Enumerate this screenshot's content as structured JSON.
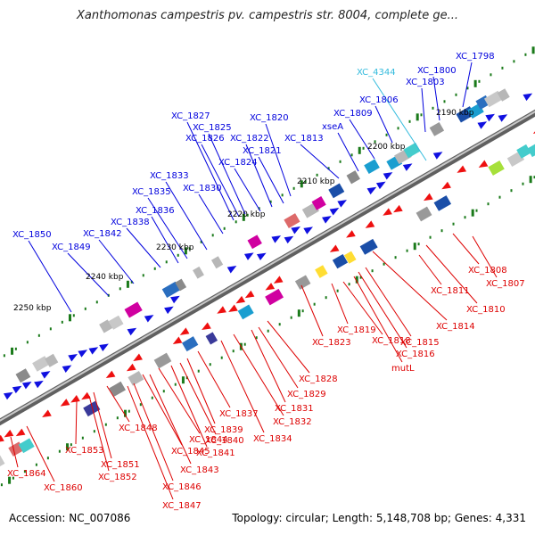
{
  "title": "Xanthomonas campestris pv. campestris str. 8004, complete ge...",
  "footer": {
    "accession": "Accession: NC_007086",
    "summary": "Topology: circular; Length: 5,148,708 bp; Genes: 4,331"
  },
  "colors": {
    "forward_label": "#0000dd",
    "reverse_label": "#dd0000",
    "rna_label": "#33bbdd",
    "backbone": "#8a8a8a",
    "tick_major": "#1a7a1a"
  },
  "kbp_labels": [
    "2190 kbp",
    "2200 kbp",
    "2210 kbp",
    "2220 kbp",
    "2230 kbp",
    "2240 kbp",
    "2250 kbp"
  ],
  "forward_genes": [
    "XC_1798",
    "XC_1800",
    "XC_1803",
    "XC_1806",
    "XC_1809",
    "xseA",
    "XC_1813",
    "XC_1820",
    "XC_1821",
    "XC_1822",
    "XC_1824",
    "XC_1825",
    "XC_1826",
    "XC_1827",
    "XC_1830",
    "XC_1833",
    "XC_1835",
    "XC_1836",
    "XC_1838",
    "XC_1842",
    "XC_1849",
    "XC_1850"
  ],
  "rna_genes": [
    "XC_4344"
  ],
  "reverse_genes": [
    "XC_1807",
    "XC_1808",
    "XC_1810",
    "XC_1811",
    "XC_1814",
    "XC_1815",
    "XC_1816",
    "mutL",
    "XC_1818",
    "XC_1819",
    "XC_1823",
    "XC_1828",
    "XC_1829",
    "XC_1831",
    "XC_1832",
    "XC_1834",
    "XC_1837",
    "XC_1839",
    "XC_1840",
    "XC_1841",
    "XC_1843",
    "XC_1844",
    "XC_1845",
    "XC_1846",
    "XC_1847",
    "XC_1848",
    "XC_1851",
    "XC_1852",
    "XC_1853",
    "XC_1860",
    "XC_1864"
  ]
}
